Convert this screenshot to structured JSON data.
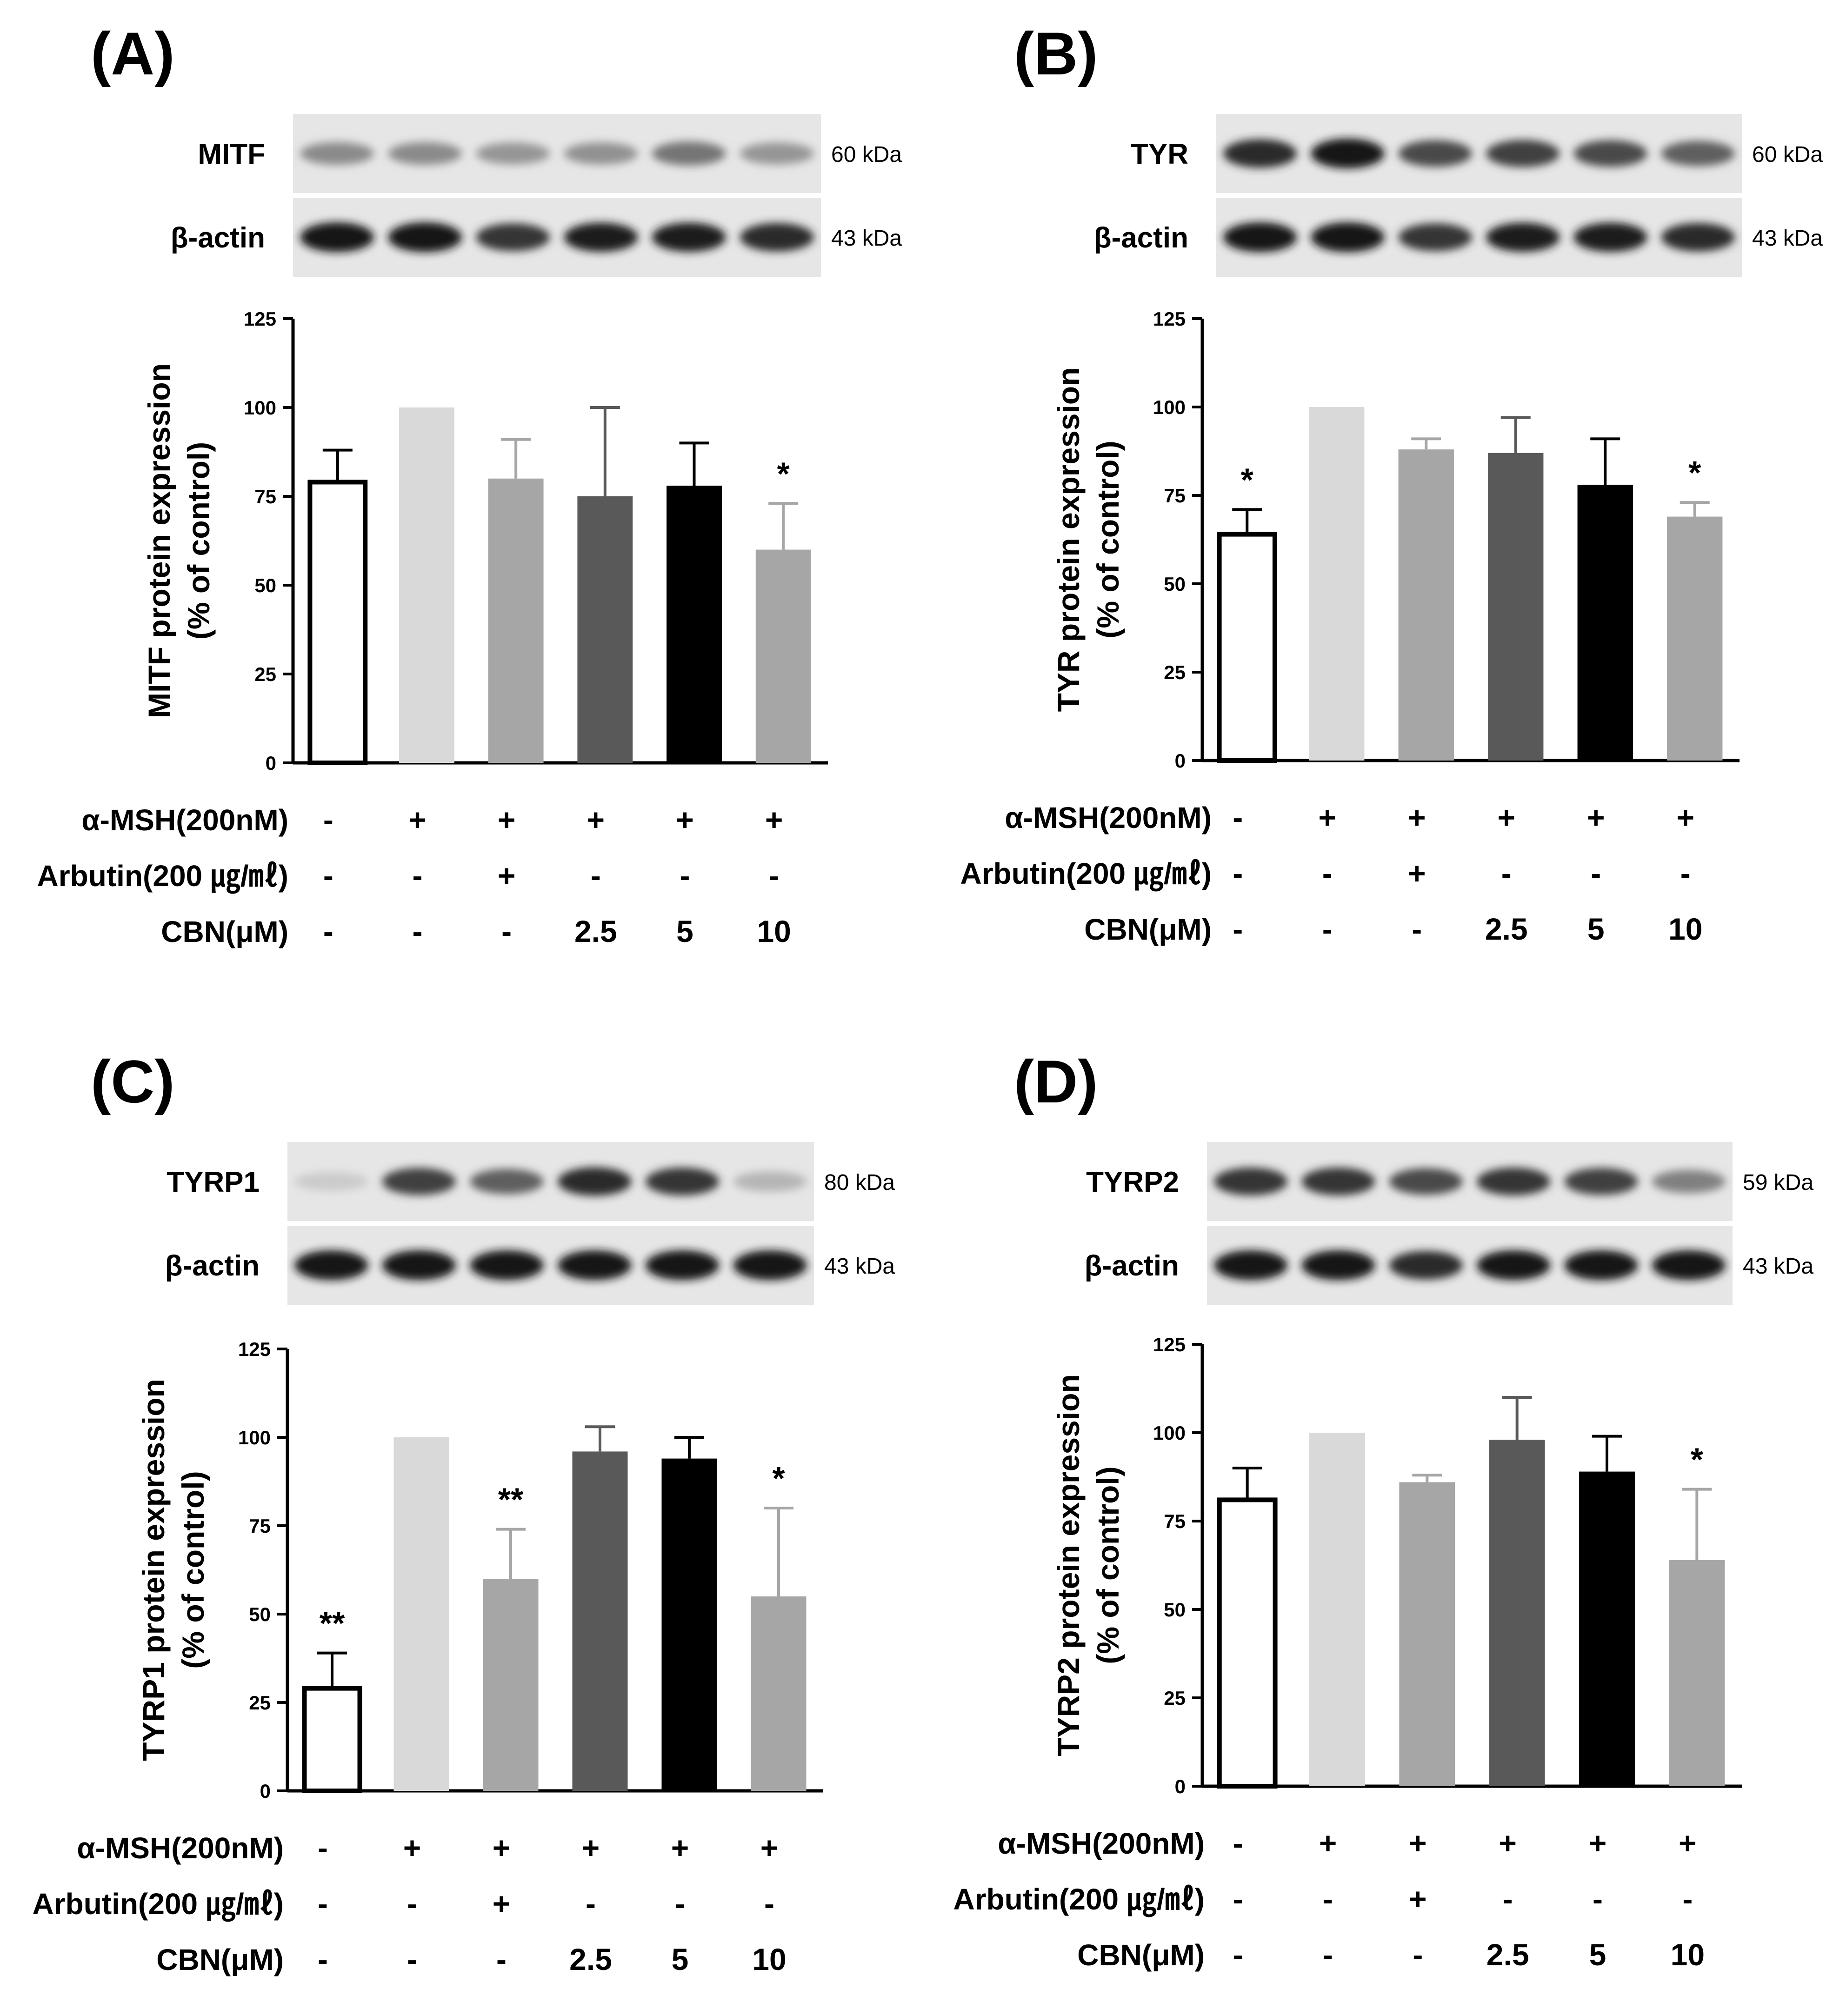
{
  "figure": {
    "lanes": 6,
    "condition_rows": [
      {
        "label": "α-MSH(200nM)",
        "values": [
          "-",
          "+",
          "+",
          "+",
          "+",
          "+"
        ]
      },
      {
        "label": "Arbutin(200 ㎍/㎖)",
        "values": [
          "-",
          "-",
          "+",
          "-",
          "-",
          "-"
        ]
      },
      {
        "label": "CBN(μM)",
        "values": [
          "-",
          "-",
          "-",
          "2.5",
          "5",
          "10"
        ]
      }
    ],
    "bar_colors": [
      "#ffffff",
      "#d9d9d9",
      "#a6a6a6",
      "#595959",
      "#000000",
      "#a6a6a6"
    ],
    "error_colors": [
      "#000000",
      "#d9d9d9",
      "#a6a6a6",
      "#595959",
      "#000000",
      "#a6a6a6"
    ]
  },
  "chart_data": [
    {
      "type": "bar",
      "panel": "(A)",
      "blot": {
        "target": "MITF",
        "target_kda": "60 kDa",
        "control": "β-actin",
        "control_kda": "43 kDa",
        "target_band_intensity": [
          0.45,
          0.45,
          0.4,
          0.42,
          0.55,
          0.4
        ],
        "control_band_intensity": [
          1,
          1,
          0.85,
          0.95,
          0.95,
          0.9
        ]
      },
      "ylabel_line1": "MITF protein expression",
      "ylabel_line2": "(% of control)",
      "ylim": [
        0,
        125
      ],
      "yticks": [
        "0",
        "25",
        "50",
        "75",
        "100",
        "125"
      ],
      "values": [
        79,
        100,
        80,
        75,
        78,
        60
      ],
      "errors": [
        9,
        0,
        11,
        25,
        12,
        13
      ],
      "significance": [
        "",
        "",
        "",
        "",
        "",
        "*"
      ]
    },
    {
      "type": "bar",
      "panel": "(B)",
      "blot": {
        "target": "TYR",
        "target_kda": "60 kDa",
        "control": "β-actin",
        "control_kda": "43 kDa",
        "target_band_intensity": [
          0.9,
          1,
          0.75,
          0.8,
          0.75,
          0.65
        ],
        "control_band_intensity": [
          1,
          1,
          0.85,
          0.95,
          0.95,
          0.9
        ]
      },
      "ylabel_line1": "TYR protein expression",
      "ylabel_line2": "(% of control)",
      "ylim": [
        0,
        125
      ],
      "yticks": [
        "0",
        "25",
        "50",
        "75",
        "100",
        "125"
      ],
      "values": [
        64,
        100,
        88,
        87,
        78,
        69
      ],
      "errors": [
        7,
        0,
        3,
        10,
        13,
        4
      ],
      "significance": [
        "*",
        "",
        "",
        "",
        "",
        "*"
      ]
    },
    {
      "type": "bar",
      "panel": "(C)",
      "blot": {
        "target": "TYRP1",
        "target_kda": "80 kDa",
        "control": "β-actin",
        "control_kda": "43 kDa",
        "target_band_intensity": [
          0.15,
          0.8,
          0.65,
          0.9,
          0.85,
          0.25
        ],
        "control_band_intensity": [
          1,
          1,
          1,
          1,
          1,
          1
        ]
      },
      "ylabel_line1": "TYRP1 protein expression",
      "ylabel_line2": "(% of control)",
      "ylim": [
        0,
        125
      ],
      "yticks": [
        "0",
        "25",
        "50",
        "75",
        "100",
        "125"
      ],
      "values": [
        29,
        100,
        60,
        96,
        94,
        55
      ],
      "errors": [
        10,
        0,
        14,
        7,
        6,
        25
      ],
      "significance": [
        "**",
        "",
        "**",
        "",
        "",
        "*"
      ]
    },
    {
      "type": "bar",
      "panel": "(D)",
      "blot": {
        "target": "TYRP2",
        "target_kda": "59 kDa",
        "control": "β-actin",
        "control_kda": "43 kDa",
        "target_band_intensity": [
          0.85,
          0.85,
          0.75,
          0.85,
          0.8,
          0.5
        ],
        "control_band_intensity": [
          1,
          1,
          0.9,
          1,
          1,
          1
        ]
      },
      "ylabel_line1": "TYRP2 protein expression",
      "ylabel_line2": "(% of control)",
      "ylim": [
        0,
        125
      ],
      "yticks": [
        "0",
        "25",
        "50",
        "75",
        "100",
        "125"
      ],
      "values": [
        81,
        100,
        86,
        98,
        89,
        64
      ],
      "errors": [
        9,
        0,
        2,
        12,
        10,
        20
      ],
      "significance": [
        "",
        "",
        "",
        "",
        "",
        "*"
      ]
    }
  ]
}
